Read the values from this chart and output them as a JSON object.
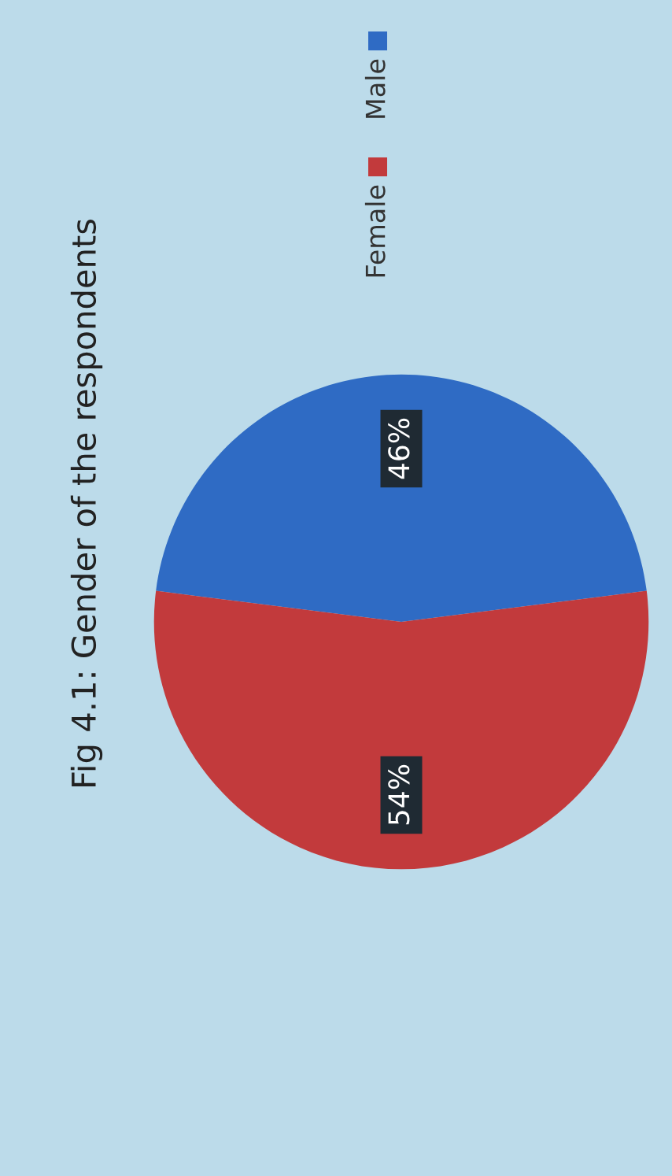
{
  "chart_data": {
    "type": "pie",
    "title": "Fig 4.1: Gender of the respondents",
    "categories": [
      "Male",
      "Female"
    ],
    "values": [
      46,
      54
    ],
    "colors": [
      "#2f6bc4",
      "#c23a3c"
    ],
    "value_labels": [
      "46%",
      "54%"
    ],
    "legend": "top"
  }
}
